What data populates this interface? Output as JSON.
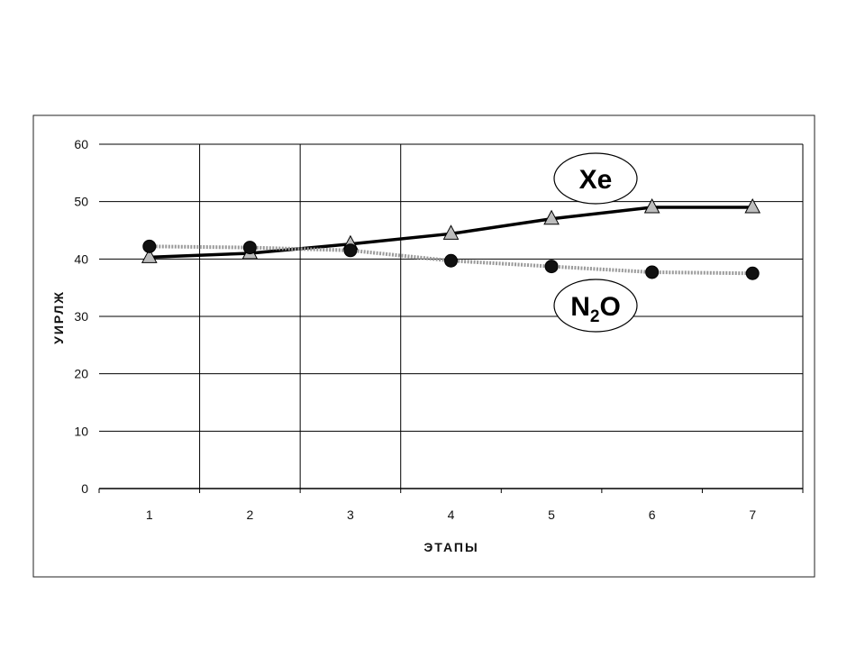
{
  "chart_data": {
    "type": "line",
    "title": "",
    "xlabel": "ЭТАПЫ",
    "ylabel": "УИРЛЖ",
    "categories": [
      "1",
      "2",
      "3",
      "4",
      "5",
      "6",
      "7"
    ],
    "ylim": [
      0,
      60
    ],
    "yticks": [
      "0",
      "10",
      "20",
      "30",
      "40",
      "50",
      "60"
    ],
    "grid": true,
    "series": [
      {
        "name": "Xe",
        "values": [
          40.3,
          41.0,
          42.6,
          44.4,
          47.0,
          49.0,
          49.0
        ],
        "marker": "triangle",
        "color": "#000000"
      },
      {
        "name": "N2O",
        "values": [
          42.2,
          42.0,
          41.5,
          39.7,
          38.7,
          37.7,
          37.5
        ],
        "marker": "circle",
        "color": "#999999"
      }
    ],
    "annotations": [
      {
        "series": "Xe",
        "text": "Xe"
      },
      {
        "series": "N2O",
        "text_main": "N",
        "text_sub": "2",
        "text_end": "O"
      }
    ]
  }
}
